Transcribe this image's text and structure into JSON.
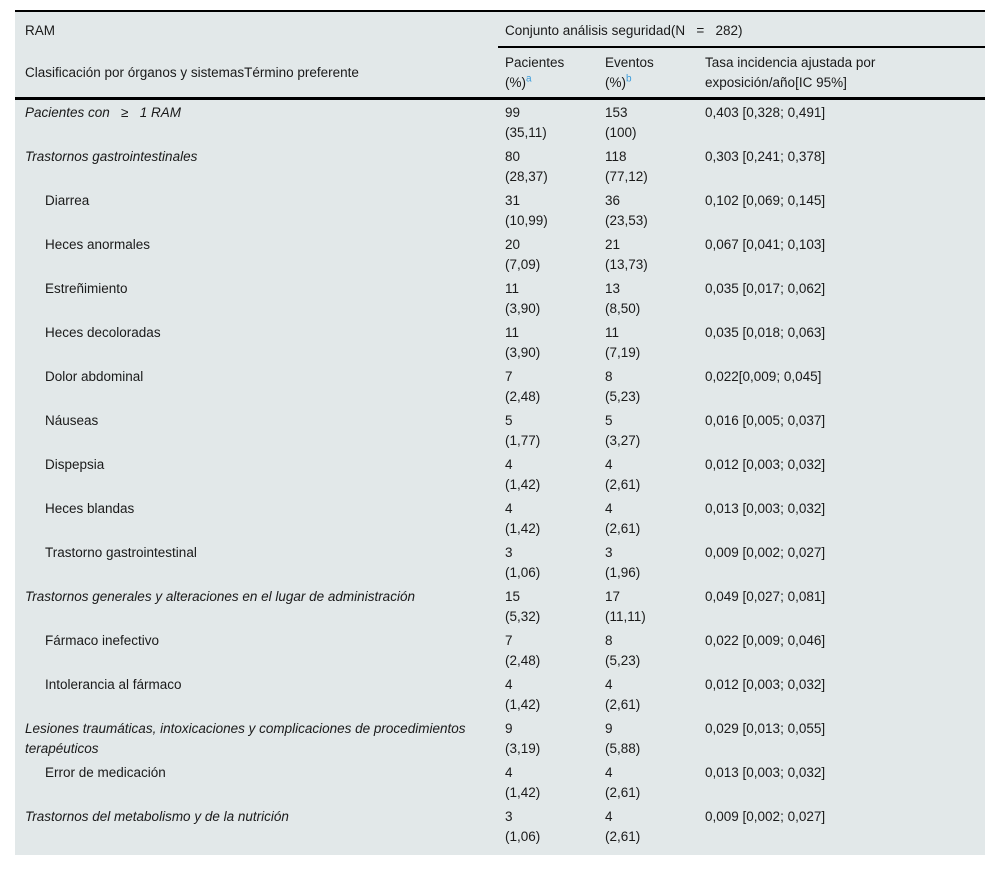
{
  "colors": {
    "table_bg": "#e2e8e9",
    "accent_blue": "#3b9cdb",
    "rule_black": "#000000"
  },
  "table": {
    "header": {
      "ram": "RAM",
      "classification": "Clasificación por órganos y sistemasTérmino preferente",
      "group_title": "Conjunto análisis seguridad(N   =   282)",
      "patients_line1": "Pacientes",
      "patients_line2": "(%)",
      "patients_sup": "a",
      "events_line1": "Eventos",
      "events_line2": "(%)",
      "events_sup": "b",
      "rate_col": "Tasa incidencia ajustada por exposición/año[IC 95%]"
    },
    "rows": [
      {
        "label": "Pacientes con   ≥   1 RAM",
        "type": "section",
        "patients_n": "99",
        "patients_pct": "(35,11)",
        "events_n": "153",
        "events_pct": "(100)",
        "rate": "0,403 [0,328; 0,491]"
      },
      {
        "label": "Trastornos gastrointestinales",
        "type": "section",
        "patients_n": "80",
        "patients_pct": "(28,37)",
        "events_n": "118",
        "events_pct": "(77,12)",
        "rate": "0,303 [0,241; 0,378]"
      },
      {
        "label": "Diarrea",
        "type": "item",
        "patients_n": "31",
        "patients_pct": "(10,99)",
        "events_n": "36",
        "events_pct": "(23,53)",
        "rate": "0,102 [0,069; 0,145]"
      },
      {
        "label": "Heces anormales",
        "type": "item",
        "patients_n": "20",
        "patients_pct": "(7,09)",
        "events_n": "21",
        "events_pct": "(13,73)",
        "rate": "0,067 [0,041; 0,103]"
      },
      {
        "label": "Estreñimiento",
        "type": "item",
        "patients_n": "11",
        "patients_pct": "(3,90)",
        "events_n": "13",
        "events_pct": "(8,50)",
        "rate": "0,035 [0,017; 0,062]"
      },
      {
        "label": "Heces decoloradas",
        "type": "item",
        "patients_n": "11",
        "patients_pct": "(3,90)",
        "events_n": "11",
        "events_pct": "(7,19)",
        "rate": "0,035 [0,018; 0,063]"
      },
      {
        "label": "Dolor abdominal",
        "type": "item",
        "patients_n": "7",
        "patients_pct": "(2,48)",
        "events_n": "8",
        "events_pct": "(5,23)",
        "rate": "0,022[0,009; 0,045]"
      },
      {
        "label": "Náuseas",
        "type": "item",
        "patients_n": "5",
        "patients_pct": "(1,77)",
        "events_n": "5",
        "events_pct": "(3,27)",
        "rate": "0,016 [0,005; 0,037]"
      },
      {
        "label": "Dispepsia",
        "type": "item",
        "patients_n": "4",
        "patients_pct": "(1,42)",
        "events_n": "4",
        "events_pct": "(2,61)",
        "rate": "0,012 [0,003; 0,032]"
      },
      {
        "label": "Heces blandas",
        "type": "item",
        "patients_n": "4",
        "patients_pct": "(1,42)",
        "events_n": "4",
        "events_pct": "(2,61)",
        "rate": "0,013 [0,003; 0,032]"
      },
      {
        "label": "Trastorno gastrointestinal",
        "type": "item",
        "patients_n": "3",
        "patients_pct": "(1,06)",
        "events_n": "3",
        "events_pct": "(1,96)",
        "rate": "0,009 [0,002; 0,027]"
      },
      {
        "label": "Trastornos generales y alteraciones en el lugar de administración",
        "type": "section",
        "patients_n": "15",
        "patients_pct": "(5,32)",
        "events_n": "17",
        "events_pct": "(11,11)",
        "rate": "0,049 [0,027; 0,081]"
      },
      {
        "label": "Fármaco inefectivo",
        "type": "item",
        "patients_n": "7",
        "patients_pct": "(2,48)",
        "events_n": "8",
        "events_pct": "(5,23)",
        "rate": "0,022 [0,009; 0,046]"
      },
      {
        "label": "Intolerancia al fármaco",
        "type": "item",
        "patients_n": "4",
        "patients_pct": "(1,42)",
        "events_n": "4",
        "events_pct": "(2,61)",
        "rate": "0,012 [0,003; 0,032]"
      },
      {
        "label": "Lesiones traumáticas, intoxicaciones y complicaciones de procedimientos terapéuticos",
        "type": "section",
        "patients_n": "9",
        "patients_pct": "(3,19)",
        "events_n": "9",
        "events_pct": "(5,88)",
        "rate": "0,029 [0,013; 0,055]"
      },
      {
        "label": "Error de medicación",
        "type": "item",
        "patients_n": "4",
        "patients_pct": "(1,42)",
        "events_n": "4",
        "events_pct": "(2,61)",
        "rate": "0,013 [0,003; 0,032]"
      },
      {
        "label": "Trastornos del metabolismo y de la nutrición",
        "type": "section",
        "patients_n": "3",
        "patients_pct": "(1,06)",
        "events_n": "4",
        "events_pct": "(2,61)",
        "rate": "0,009 [0,002; 0,027]"
      }
    ]
  }
}
